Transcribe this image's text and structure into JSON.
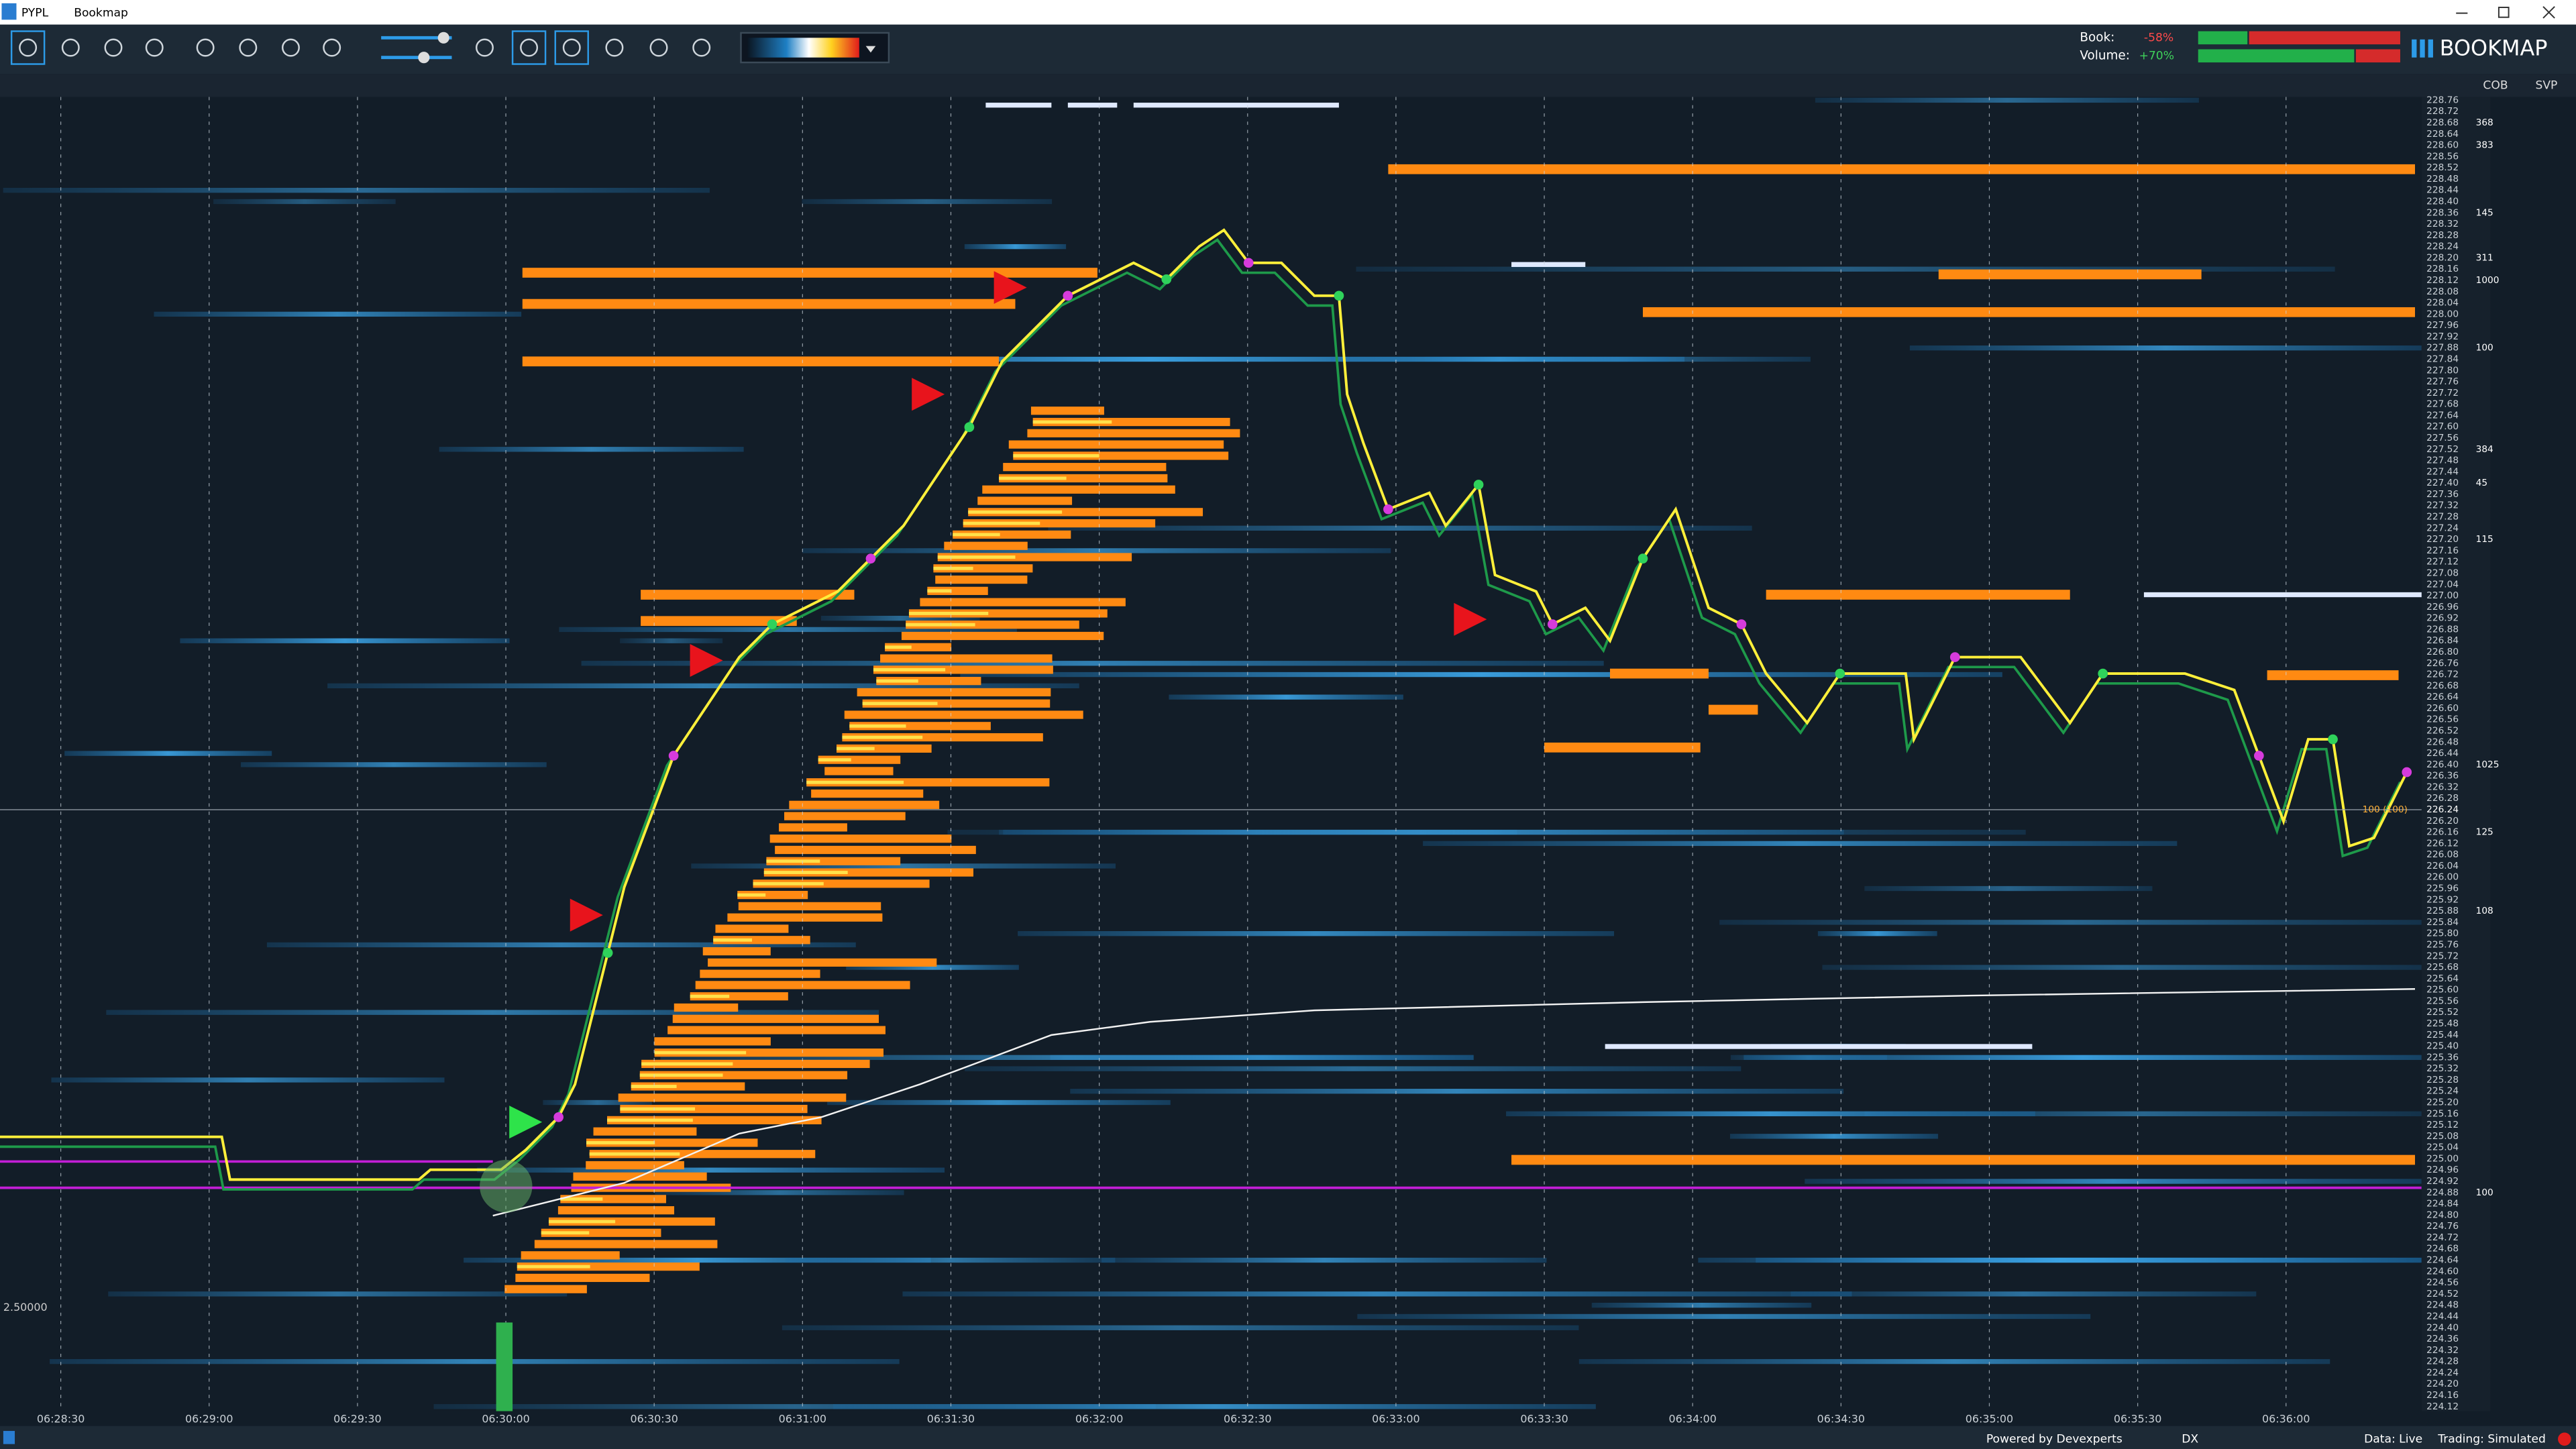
{
  "window": {
    "symbol": "PYPL",
    "title": "Bookmap"
  },
  "stats": {
    "book_label": "Book:",
    "book_value": "-58%",
    "volume_label": "Volume:",
    "volume_value": "+70%"
  },
  "brand": "BOOKMAP",
  "panel_tabs": [
    "COB",
    "SVP"
  ],
  "time_axis": [
    "06:28:30",
    "06:29:00",
    "06:29:30",
    "06:30:00",
    "06:30:30",
    "06:31:00",
    "06:31:30",
    "06:32:00",
    "06:32:30",
    "06:33:00",
    "06:33:30",
    "06:34:00",
    "06:34:30",
    "06:35:00",
    "06:35:30",
    "06:36:00"
  ],
  "price_ladder": [
    {
      "price": "228.76"
    },
    {
      "price": "228.72"
    },
    {
      "price": "228.68",
      "size": "368"
    },
    {
      "price": "228.64"
    },
    {
      "price": "228.60",
      "size": "383"
    },
    {
      "price": "228.56"
    },
    {
      "price": "228.52"
    },
    {
      "price": "228.48"
    },
    {
      "price": "228.44"
    },
    {
      "price": "228.40"
    },
    {
      "price": "228.36",
      "size": "145"
    },
    {
      "price": "228.32"
    },
    {
      "price": "228.28"
    },
    {
      "price": "228.24"
    },
    {
      "price": "228.20",
      "size": "311"
    },
    {
      "price": "228.16"
    },
    {
      "price": "228.12",
      "size": "1000"
    },
    {
      "price": "228.08"
    },
    {
      "price": "228.04"
    },
    {
      "price": "228.00"
    },
    {
      "price": "227.96"
    },
    {
      "price": "227.92"
    },
    {
      "price": "227.88",
      "size": "100"
    },
    {
      "price": "227.84"
    },
    {
      "price": "227.80"
    },
    {
      "price": "227.76"
    },
    {
      "price": "227.72"
    },
    {
      "price": "227.68"
    },
    {
      "price": "227.64"
    },
    {
      "price": "227.60"
    },
    {
      "price": "227.56"
    },
    {
      "price": "227.52",
      "size": "384"
    },
    {
      "price": "227.48"
    },
    {
      "price": "227.44"
    },
    {
      "price": "227.40",
      "size": "45"
    },
    {
      "price": "227.36"
    },
    {
      "price": "227.32"
    },
    {
      "price": "227.28"
    },
    {
      "price": "227.24"
    },
    {
      "price": "227.20",
      "size": "115"
    },
    {
      "price": "227.16"
    },
    {
      "price": "227.12"
    },
    {
      "price": "227.08"
    },
    {
      "price": "227.04"
    },
    {
      "price": "227.00"
    },
    {
      "price": "226.96"
    },
    {
      "price": "226.92"
    },
    {
      "price": "226.88"
    },
    {
      "price": "226.84"
    },
    {
      "price": "226.80"
    },
    {
      "price": "226.76"
    },
    {
      "price": "226.72"
    },
    {
      "price": "226.68"
    },
    {
      "price": "226.64"
    },
    {
      "price": "226.60"
    },
    {
      "price": "226.56"
    },
    {
      "price": "226.52"
    },
    {
      "price": "226.48"
    },
    {
      "price": "226.44"
    },
    {
      "price": "226.40",
      "size": "1025"
    },
    {
      "price": "226.36"
    },
    {
      "price": "226.32"
    },
    {
      "price": "226.28"
    },
    {
      "price": "226.24"
    },
    {
      "price": "226.20"
    },
    {
      "price": "226.16",
      "size": "125"
    },
    {
      "price": "226.12"
    },
    {
      "price": "226.08"
    },
    {
      "price": "226.04"
    },
    {
      "price": "226.00"
    },
    {
      "price": "225.96"
    },
    {
      "price": "225.92"
    },
    {
      "price": "225.88",
      "size": "108"
    },
    {
      "price": "225.84"
    },
    {
      "price": "225.80"
    },
    {
      "price": "225.76"
    },
    {
      "price": "225.72"
    },
    {
      "price": "225.68"
    },
    {
      "price": "225.64"
    },
    {
      "price": "225.60"
    },
    {
      "price": "225.56"
    },
    {
      "price": "225.52"
    },
    {
      "price": "225.48"
    },
    {
      "price": "225.44"
    },
    {
      "price": "225.40"
    },
    {
      "price": "225.36"
    },
    {
      "price": "225.32"
    },
    {
      "price": "225.28"
    },
    {
      "price": "225.24"
    },
    {
      "price": "225.20"
    },
    {
      "price": "225.16"
    },
    {
      "price": "225.12"
    },
    {
      "price": "225.08"
    },
    {
      "price": "225.04"
    },
    {
      "price": "225.00"
    },
    {
      "price": "224.96"
    },
    {
      "price": "224.92"
    },
    {
      "price": "224.88",
      "size": "100"
    },
    {
      "price": "224.84"
    },
    {
      "price": "224.80"
    },
    {
      "price": "224.76"
    },
    {
      "price": "224.72"
    },
    {
      "price": "224.68"
    },
    {
      "price": "224.64"
    },
    {
      "price": "224.60"
    },
    {
      "price": "224.56"
    },
    {
      "price": "224.52"
    },
    {
      "price": "224.48"
    },
    {
      "price": "224.44"
    },
    {
      "price": "224.40"
    },
    {
      "price": "224.36"
    },
    {
      "price": "224.32"
    },
    {
      "price": "224.28"
    },
    {
      "price": "224.24"
    },
    {
      "price": "224.20"
    },
    {
      "price": "224.16"
    },
    {
      "price": "224.12"
    }
  ],
  "current_price_label": "100 (100)",
  "scale_label": "2.50000",
  "footer": {
    "powered": "Powered by Devexperts",
    "provider": "DX",
    "data": "Data: Live",
    "trading": "Trading: Simulated"
  }
}
